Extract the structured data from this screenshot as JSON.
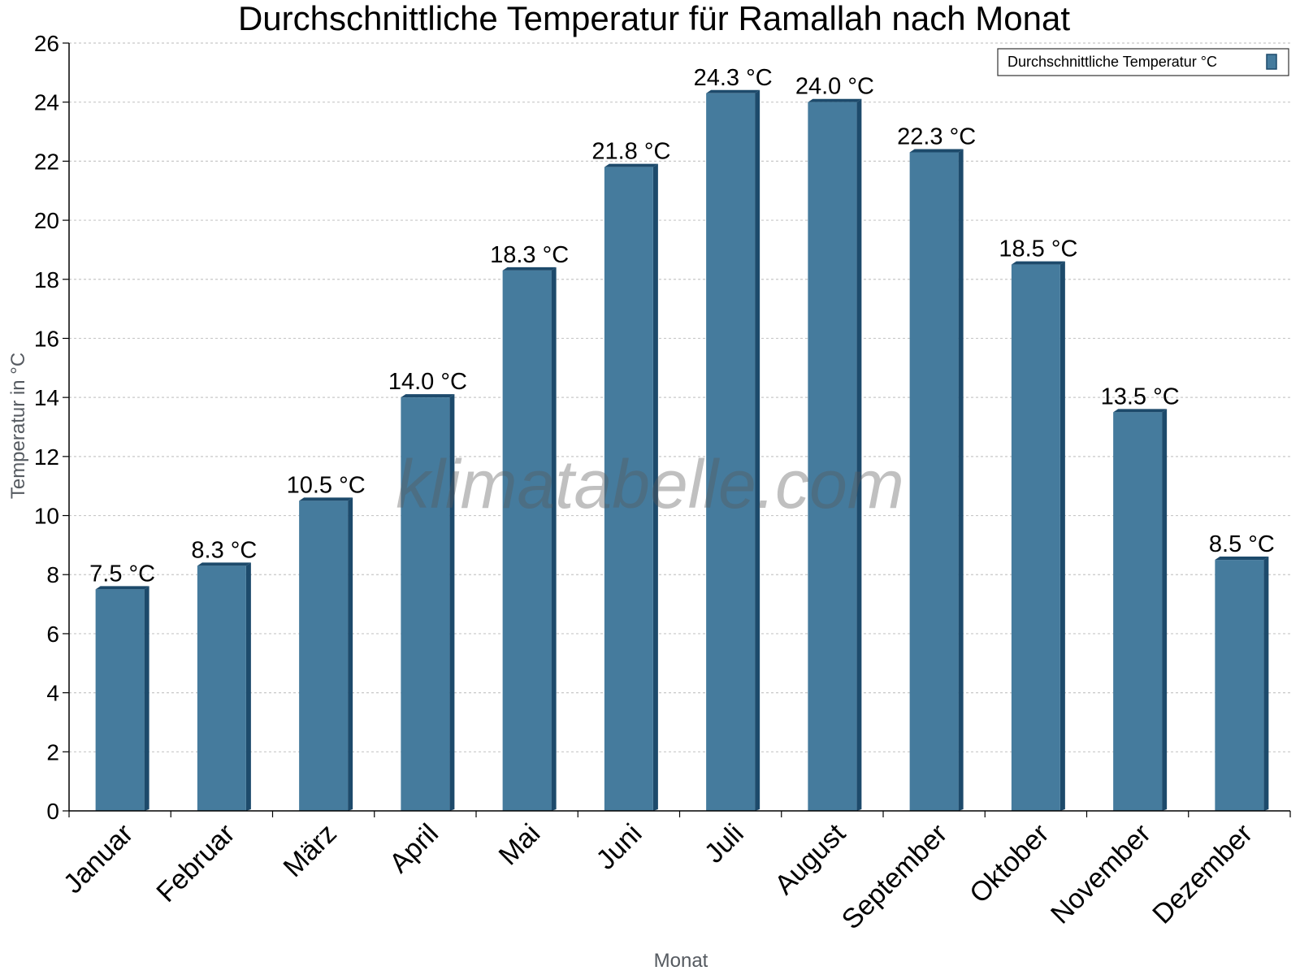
{
  "chart_data": {
    "type": "bar",
    "title": "Durchschnittliche Temperatur für Ramallah nach Monat",
    "xlabel": "Monat",
    "ylabel": "Temperatur in °C",
    "categories": [
      "Januar",
      "Februar",
      "März",
      "April",
      "Mai",
      "Juni",
      "Juli",
      "August",
      "September",
      "Oktober",
      "November",
      "Dezember"
    ],
    "series": [
      {
        "name": "Durchschnittliche Temperatur °C",
        "values": [
          7.5,
          8.3,
          10.5,
          14.0,
          18.3,
          21.8,
          24.3,
          24.0,
          22.3,
          18.5,
          13.5,
          8.5
        ],
        "labels": [
          "7.5 °C",
          "8.3 °C",
          "10.5 °C",
          "14.0 °C",
          "18.3 °C",
          "21.8 °C",
          "24.3 °C",
          "24.0 °C",
          "22.3 °C",
          "18.5 °C",
          "13.5 °C",
          "8.5 °C"
        ]
      }
    ],
    "ylim": [
      0,
      26
    ],
    "yticks": [
      "0",
      "2",
      "4",
      "6",
      "8",
      "10",
      "12",
      "14",
      "16",
      "18",
      "20",
      "22",
      "24",
      "26"
    ],
    "grid": true,
    "legend_position": "top-right",
    "colors": {
      "bar": "#457b9d",
      "bar_side": "#1d4a6b",
      "bar_top": "#1d4a6b",
      "grid": "#c8c8c8",
      "axis": "#000000"
    },
    "watermark": "klimatabelle.com"
  }
}
